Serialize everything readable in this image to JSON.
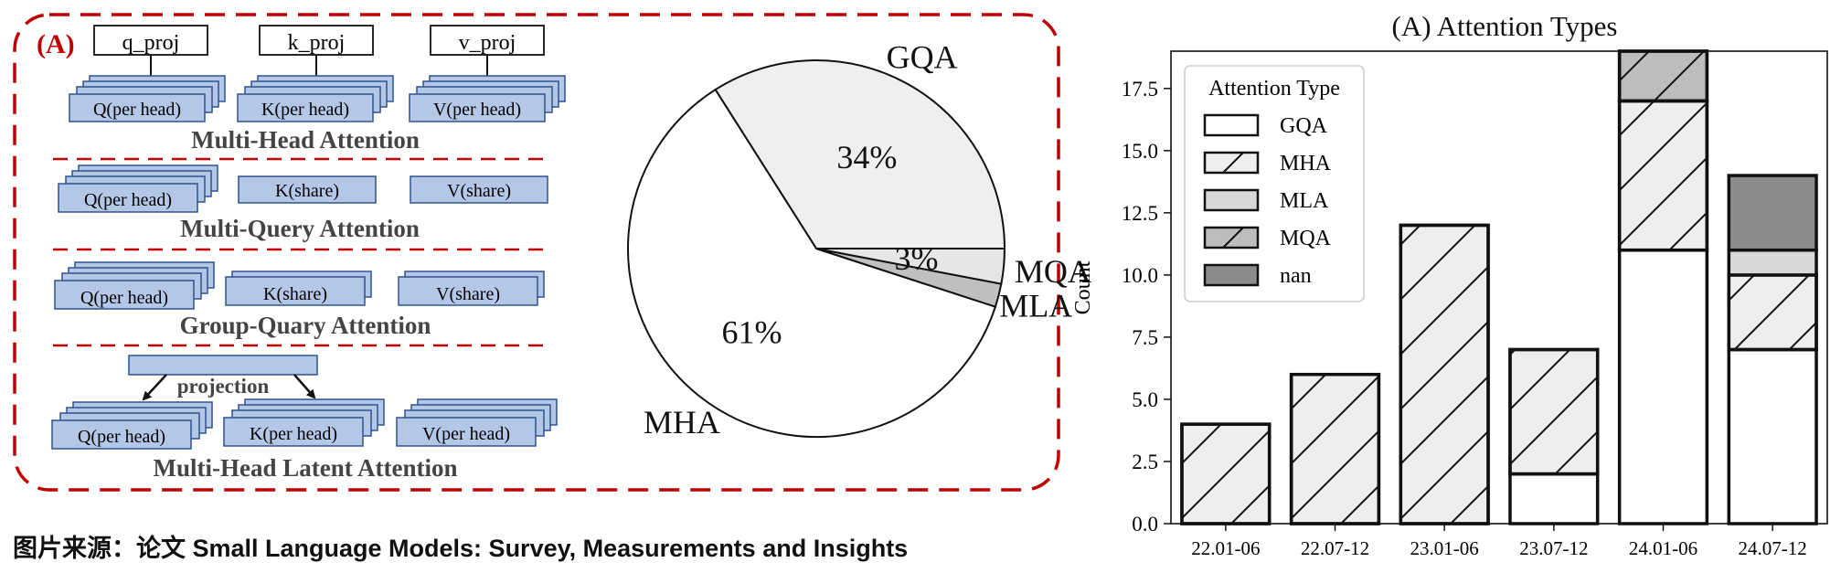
{
  "diagram": {
    "panel_label": "(A)",
    "sections": [
      {
        "title": "Multi-Head Attention",
        "proj_labels": [
          "q_proj",
          "k_proj",
          "v_proj"
        ],
        "blocks": [
          "Q(per head)",
          "K(per head)",
          "V(per head)"
        ]
      },
      {
        "title": "Multi-Query Attention",
        "blocks": [
          "Q(per head)",
          "K(share)",
          "V(share)"
        ]
      },
      {
        "title": "Group-Quary Attention",
        "blocks": [
          "Q(per head)",
          "K(share)",
          "V(share)"
        ]
      },
      {
        "title": "Multi-Head Latent Attention",
        "projection_label": "projection",
        "blocks": [
          "Q(per head)",
          "K(per head)",
          "V(per head)"
        ]
      }
    ],
    "colors": {
      "block_fill": "#b4c7e7",
      "block_stroke": "#2f528f",
      "border": "#c00000",
      "label": "#c00000",
      "title": "#444444"
    }
  },
  "caption": "图片来源：论文 Small Language Models: Survey, Measurements and Insights",
  "chart_data": [
    {
      "type": "pie",
      "labels": [
        "GQA",
        "MHA",
        "MLA",
        "MQA"
      ],
      "values": [
        34,
        61,
        2,
        3
      ],
      "pct_labels": {
        "GQA": "34%",
        "MHA": "61%",
        "MQA": "3%"
      },
      "colors": [
        "#efefef",
        "#ffffff",
        "#c0c0c0",
        "#e6e6e6"
      ]
    },
    {
      "type": "bar",
      "stacked": true,
      "title": "(A) Attention Types",
      "xlabel": "",
      "ylabel": "Count",
      "ylim": [
        0,
        19
      ],
      "yticks": [
        0.0,
        2.5,
        5.0,
        7.5,
        10.0,
        12.5,
        15.0,
        17.5
      ],
      "categories": [
        "22.01-06",
        "22.07-12",
        "23.01-06",
        "23.07-12",
        "24.01-06",
        "24.07-12"
      ],
      "series": [
        {
          "name": "GQA",
          "values": [
            0,
            0,
            0,
            2,
            11,
            7
          ],
          "color": "#ffffff",
          "hatch": false
        },
        {
          "name": "MHA",
          "values": [
            4,
            6,
            12,
            5,
            6,
            3
          ],
          "color": "#eeeeee",
          "hatch": true
        },
        {
          "name": "MLA",
          "values": [
            0,
            0,
            0,
            0,
            0,
            1
          ],
          "color": "#d8d8d8",
          "hatch": false
        },
        {
          "name": "MQA",
          "values": [
            0,
            0,
            0,
            0,
            2,
            0
          ],
          "color": "#bdbdbd",
          "hatch": true
        },
        {
          "name": "nan",
          "values": [
            0,
            0,
            0,
            0,
            0,
            3
          ],
          "color": "#8c8c8c",
          "hatch": false
        }
      ],
      "legend": {
        "title": "Attention Type",
        "position": "upper-left"
      }
    }
  ]
}
